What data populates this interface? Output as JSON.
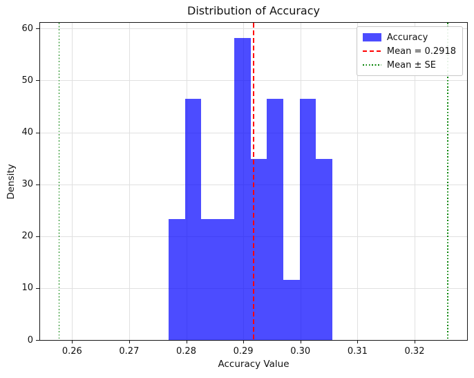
{
  "chart_data": {
    "type": "bar",
    "subtype": "histogram",
    "title": "Distribution of Accuracy",
    "xlabel": "Accuracy Value",
    "ylabel": "Density",
    "xlim": [
      0.2544,
      0.3292
    ],
    "ylim": [
      0,
      61.1
    ],
    "grid": true,
    "legend_position": "upper-right",
    "xticks": [
      {
        "value": 0.26,
        "label": "0.26"
      },
      {
        "value": 0.27,
        "label": "0.27"
      },
      {
        "value": 0.28,
        "label": "0.28"
      },
      {
        "value": 0.29,
        "label": "0.29"
      },
      {
        "value": 0.3,
        "label": "0.30"
      },
      {
        "value": 0.31,
        "label": "0.31"
      },
      {
        "value": 0.32,
        "label": "0.32"
      }
    ],
    "yticks": [
      {
        "value": 0,
        "label": "0"
      },
      {
        "value": 10,
        "label": "10"
      },
      {
        "value": 20,
        "label": "20"
      },
      {
        "value": 30,
        "label": "30"
      },
      {
        "value": 40,
        "label": "40"
      },
      {
        "value": 50,
        "label": "50"
      },
      {
        "value": 60,
        "label": "60"
      }
    ],
    "series": [
      {
        "name": "Accuracy",
        "bin_edges": [
          0.2769,
          0.27977,
          0.28264,
          0.28551,
          0.28839,
          0.29126,
          0.29413,
          0.297,
          0.29987,
          0.30274,
          0.30562
        ],
        "densities": [
          23.26,
          46.51,
          23.26,
          23.26,
          58.14,
          34.88,
          46.51,
          11.63,
          46.51,
          34.88
        ],
        "color": "#0000ff",
        "opacity": 0.7
      }
    ],
    "mean_line": {
      "x": 0.2918,
      "color": "#ff0000",
      "style": "dashed",
      "label": "Mean = 0.2918"
    },
    "se_lines": {
      "x_values": [
        0.2577,
        0.3258
      ],
      "color": "#008000",
      "style": "dotted",
      "label": "Mean ± SE"
    },
    "legend": [
      {
        "label": "Accuracy",
        "marker": "patch",
        "color": "#0000ff",
        "opacity": 0.7
      },
      {
        "label": "Mean = 0.2918",
        "marker": "dashed-line",
        "color": "#ff0000"
      },
      {
        "label": "Mean ± SE",
        "marker": "dotted-line",
        "color": "#008000"
      }
    ],
    "colors": {
      "grid": "#e0e0e0",
      "spine": "#151515",
      "text": "#111111",
      "background": "#ffffff"
    }
  }
}
